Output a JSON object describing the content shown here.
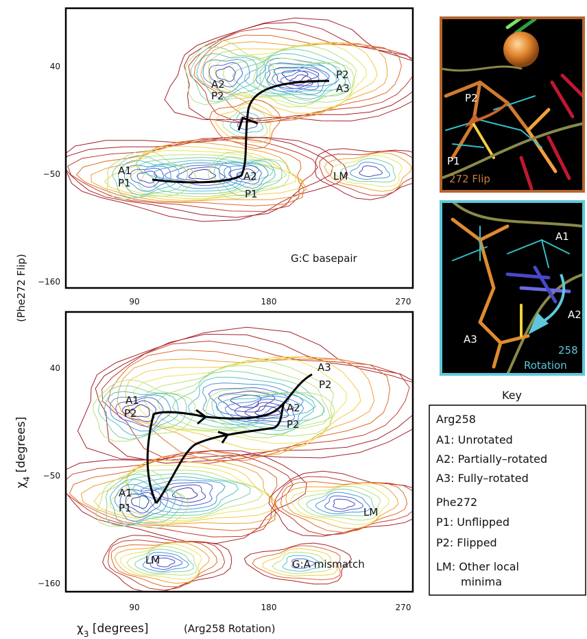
{
  "top_panel": {
    "name": "G:C basepair",
    "y_ticks": [
      "40",
      "−50",
      "−160"
    ],
    "x_ticks": [
      "90",
      "180",
      "270"
    ],
    "labels": [
      {
        "line1": "A2",
        "line2": "P2"
      },
      {
        "line1": "P2",
        "line2": "A3"
      },
      {
        "line1": "A1",
        "line2": "P1"
      },
      {
        "line1": "A2",
        "line2": "P1"
      },
      {
        "line1": "LM",
        "line2": ""
      }
    ]
  },
  "bottom_panel": {
    "name": "G:A mismatch",
    "y_ticks": [
      "40",
      "−50",
      "−160"
    ],
    "x_ticks": [
      "90",
      "180",
      "270"
    ],
    "labels": [
      {
        "line1": "A3",
        "line2": "P2"
      },
      {
        "line1": "A1",
        "line2": "P2"
      },
      {
        "line1": "A2",
        "line2": "P2"
      },
      {
        "line1": "A1",
        "line2": "P1"
      },
      {
        "line1": "LM",
        "line2": ""
      },
      {
        "line1": "LM",
        "line2": ""
      }
    ]
  },
  "y_axis": {
    "symbol": "χ",
    "sub": "4",
    "unit": " [degrees]",
    "note": "(Phe272 Flip)"
  },
  "x_axis": {
    "symbol": "χ",
    "sub": "3",
    "unit": " [degrees]",
    "note": "(Arg258 Rotation)"
  },
  "inset_flip": {
    "label_p2": "P2",
    "label_p1": "P1",
    "caption": "272 Flip",
    "border": "#b5652f"
  },
  "inset_rotation": {
    "label_a1": "A1",
    "label_a2": "A2",
    "label_a3": "A3",
    "caption_1": "258",
    "caption_2": "Rotation",
    "border": "#5fc7dc"
  },
  "key": {
    "title": "Key",
    "arg_header": "Arg258",
    "a1": "A1: Unrotated",
    "a2": "A2: Partially–rotated",
    "a3": "A3: Fully–rotated",
    "phe_header": "Phe272",
    "p1": "P1: Unflipped",
    "p2": "P2: Flipped",
    "lm1": "LM: Other local",
    "lm2": "minima"
  }
}
